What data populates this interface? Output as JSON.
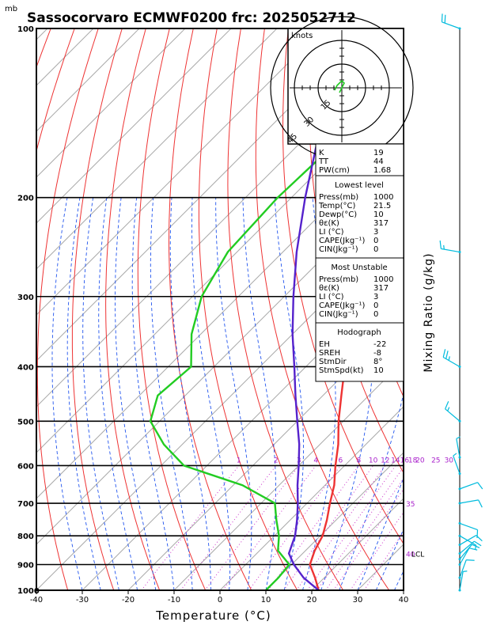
{
  "chart_data": {
    "type": "line",
    "title": "Sassocorvaro ECMWF0200 frc: 2025052712",
    "xlabel": "Temperature (°C)",
    "ylabel_right": "Mixing Ratio (g/kg)",
    "y_unit": "mb",
    "xlim": [
      -40,
      40
    ],
    "ylim": [
      1000,
      100
    ],
    "x_ticks": [
      -40,
      -30,
      -20,
      -10,
      0,
      10,
      20,
      30,
      40
    ],
    "pressure_ticks": [
      100,
      200,
      300,
      400,
      500,
      600,
      700,
      800,
      900,
      1000
    ],
    "mixing_ratio_labels": [
      "1",
      "2",
      "3",
      "4",
      "6",
      "8",
      "10",
      "12",
      "14",
      "16",
      "18",
      "20",
      "25",
      "30"
    ],
    "mixing_ratio_values": [
      1,
      2,
      3,
      4,
      6,
      8,
      10,
      12,
      14,
      16,
      18,
      20,
      25,
      30
    ],
    "extra_labels": [
      {
        "text": "35",
        "p": 700
      },
      {
        "text": "40",
        "p": 860
      }
    ],
    "lcl_label": "LCL",
    "lcl_pressure": 860,
    "series": [
      {
        "role": "temperature",
        "color": "#ee3333",
        "p": [
          1000,
          950,
          900,
          850,
          800,
          750,
          700,
          650,
          600,
          550,
          500,
          450,
          400,
          350,
          300,
          270,
          250,
          230,
          200,
          170,
          150,
          130,
          115,
          100
        ],
        "t": [
          21.5,
          18,
          14,
          12,
          10.5,
          8,
          5,
          2,
          -2,
          -6,
          -11,
          -16,
          -21.5,
          -28,
          -35,
          -40,
          -44,
          -45,
          -43,
          -40,
          -37,
          -34,
          -31,
          -27
        ]
      },
      {
        "role": "dewpoint",
        "color": "#22cc22",
        "p": [
          1000,
          950,
          900,
          850,
          800,
          750,
          700,
          650,
          600,
          550,
          500,
          450,
          400,
          350,
          300,
          250,
          200,
          150,
          100
        ],
        "t": [
          10,
          10,
          9.5,
          4,
          1,
          -3,
          -7,
          -18,
          -35,
          -44,
          -52,
          -56,
          -55,
          -62,
          -68,
          -72,
          -73,
          -72,
          -70
        ]
      },
      {
        "role": "parcel",
        "color": "#5522cc",
        "p": [
          1000,
          950,
          900,
          860,
          800,
          750,
          700,
          650,
          600,
          550,
          500,
          450,
          400,
          350,
          300,
          250,
          200,
          150,
          100
        ],
        "t": [
          21.5,
          15.5,
          10.5,
          7,
          4.5,
          1.5,
          -2,
          -6,
          -10,
          -14.5,
          -20,
          -26,
          -32.5,
          -40,
          -48,
          -57,
          -67,
          -79,
          -92
        ]
      }
    ],
    "hodograph": {
      "units_label": "knots",
      "ring_labels": [
        "15",
        "30",
        "45"
      ],
      "ring_values": [
        15,
        30,
        45
      ],
      "trace_u": [
        -1,
        1,
        0,
        -2,
        -3
      ],
      "trace_v": [
        -2,
        2,
        3,
        1,
        -1
      ]
    },
    "wind_barbs": {
      "p": [
        100,
        250,
        400,
        500,
        580,
        620,
        660,
        700,
        760,
        800,
        830,
        860,
        880,
        900,
        950,
        1000
      ],
      "spd": [
        20,
        15,
        25,
        15,
        5,
        5,
        10,
        10,
        10,
        5,
        10,
        10,
        10,
        10,
        10,
        5
      ],
      "dir": [
        290,
        280,
        300,
        310,
        350,
        340,
        70,
        80,
        110,
        120,
        60,
        50,
        40,
        30,
        20,
        10
      ]
    }
  },
  "indices": {
    "rows1": [
      {
        "label": "K",
        "value": "19"
      },
      {
        "label": "TT",
        "value": "44"
      },
      {
        "label": "PW(cm)",
        "value": "1.68"
      }
    ],
    "lowest": {
      "heading": "Lowest level",
      "rows": [
        {
          "label": "Press(mb)",
          "value": "1000"
        },
        {
          "label": "Temp(°C)",
          "value": "21.5"
        },
        {
          "label": "Dewp(°C)",
          "value": "10"
        },
        {
          "label": "θε(K)",
          "value": "317"
        },
        {
          "label": "LI (°C)",
          "value": "3"
        },
        {
          "label": "CAPE(Jkg⁻¹)",
          "value": "0"
        },
        {
          "label": "CIN(Jkg⁻¹)",
          "value": "0"
        }
      ]
    },
    "unstable": {
      "heading": "Most Unstable",
      "rows": [
        {
          "label": "Press(mb)",
          "value": "1000"
        },
        {
          "label": "θε(K)",
          "value": "317"
        },
        {
          "label": "LI (°C)",
          "value": "3"
        },
        {
          "label": "CAPE(Jkg⁻¹)",
          "value": "0"
        },
        {
          "label": "CIN(Jkg⁻¹)",
          "value": "0"
        }
      ]
    },
    "hodo": {
      "heading": "Hodograph",
      "rows": [
        {
          "label": "EH",
          "value": "-22"
        },
        {
          "label": "SREH",
          "value": "-8"
        },
        {
          "label": "StmDir",
          "value": "8°"
        },
        {
          "label": "StmSpd(kt)",
          "value": "10"
        }
      ]
    }
  }
}
